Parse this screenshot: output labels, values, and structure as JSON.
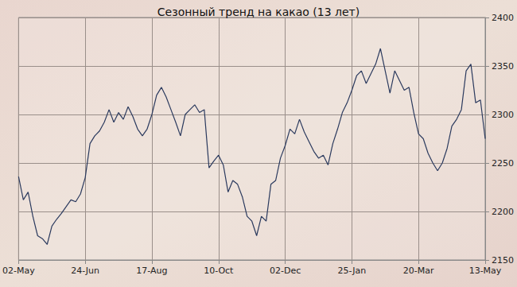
{
  "chart_data": {
    "type": "line",
    "title": "Сезонный тренд на какао (13 лет)",
    "categories": [
      "02-May",
      null,
      null,
      null,
      null,
      null,
      null,
      null,
      null,
      null,
      null,
      null,
      null,
      null,
      "24-Jun",
      null,
      null,
      null,
      null,
      null,
      null,
      null,
      null,
      null,
      null,
      null,
      null,
      null,
      "17-Aug",
      null,
      null,
      null,
      null,
      null,
      null,
      null,
      null,
      null,
      null,
      null,
      null,
      null,
      "10-Oct",
      null,
      null,
      null,
      null,
      null,
      null,
      null,
      null,
      null,
      null,
      null,
      null,
      null,
      "02-Dec",
      null,
      null,
      null,
      null,
      null,
      null,
      null,
      null,
      null,
      null,
      null,
      null,
      null,
      "25-Jan",
      null,
      null,
      null,
      null,
      null,
      null,
      null,
      null,
      null,
      null,
      null,
      null,
      null,
      "20-Mar",
      null,
      null,
      null,
      null,
      null,
      null,
      null,
      null,
      null,
      null,
      null,
      null,
      null,
      "13-May"
    ],
    "values": [
      2236,
      2212,
      2220,
      2195,
      2175,
      2172,
      2166,
      2185,
      2192,
      2198,
      2205,
      2212,
      2210,
      2218,
      2235,
      2270,
      2278,
      2283,
      2292,
      2305,
      2292,
      2302,
      2295,
      2308,
      2298,
      2285,
      2278,
      2285,
      2300,
      2320,
      2328,
      2318,
      2305,
      2292,
      2278,
      2300,
      2305,
      2310,
      2302,
      2305,
      2245,
      2252,
      2258,
      2248,
      2220,
      2232,
      2228,
      2215,
      2195,
      2190,
      2175,
      2195,
      2190,
      2228,
      2232,
      2255,
      2268,
      2285,
      2280,
      2295,
      2282,
      2272,
      2262,
      2255,
      2258,
      2248,
      2270,
      2285,
      2302,
      2312,
      2325,
      2340,
      2345,
      2332,
      2342,
      2352,
      2368,
      2345,
      2322,
      2345,
      2335,
      2325,
      2328,
      2302,
      2280,
      2275,
      2260,
      2250,
      2242,
      2250,
      2265,
      2288,
      2295,
      2305,
      2345,
      2352,
      2312,
      2315,
      2275
    ],
    "color": "#2b3a5e",
    "ylim": [
      2150,
      2400
    ],
    "yticks": [
      2150,
      2200,
      2250,
      2300,
      2350,
      2400
    ],
    "grid": true
  }
}
